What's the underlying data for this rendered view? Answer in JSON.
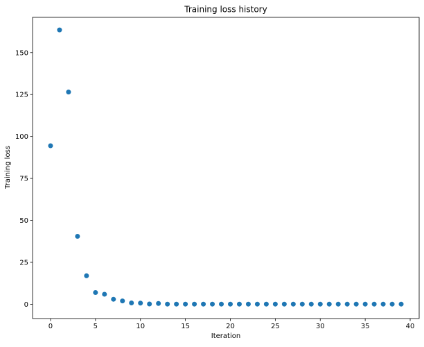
{
  "chart_data": {
    "type": "scatter",
    "title": "Training loss history",
    "xlabel": "Iteration",
    "ylabel": "Training loss",
    "xlim": [
      -2,
      41
    ],
    "ylim": [
      -8.5,
      171
    ],
    "xticks": [
      0,
      5,
      10,
      15,
      20,
      25,
      30,
      35,
      40
    ],
    "yticks": [
      0,
      25,
      50,
      75,
      100,
      125,
      150
    ],
    "grid": false,
    "point_color": "#1f77b4",
    "series": [
      {
        "x": [
          0,
          1,
          2,
          3,
          4,
          5,
          6,
          7,
          8,
          9,
          10,
          11,
          12,
          13,
          14,
          15,
          16,
          17,
          18,
          19,
          20,
          21,
          22,
          23,
          24,
          25,
          26,
          27,
          28,
          29,
          30,
          31,
          32,
          33,
          34,
          35,
          36,
          37,
          38,
          39
        ],
        "y": [
          94.5,
          163.5,
          126.5,
          40.5,
          17.0,
          7.0,
          6.0,
          3.0,
          2.0,
          0.8,
          0.7,
          0.2,
          0.5,
          0.1,
          0.1,
          0.1,
          0.1,
          0.1,
          0.1,
          0.1,
          0.1,
          0.1,
          0.1,
          0.1,
          0.1,
          0.1,
          0.1,
          0.1,
          0.1,
          0.1,
          0.1,
          0.1,
          0.1,
          0.1,
          0.1,
          0.1,
          0.1,
          0.1,
          0.1,
          0.1
        ]
      }
    ]
  }
}
